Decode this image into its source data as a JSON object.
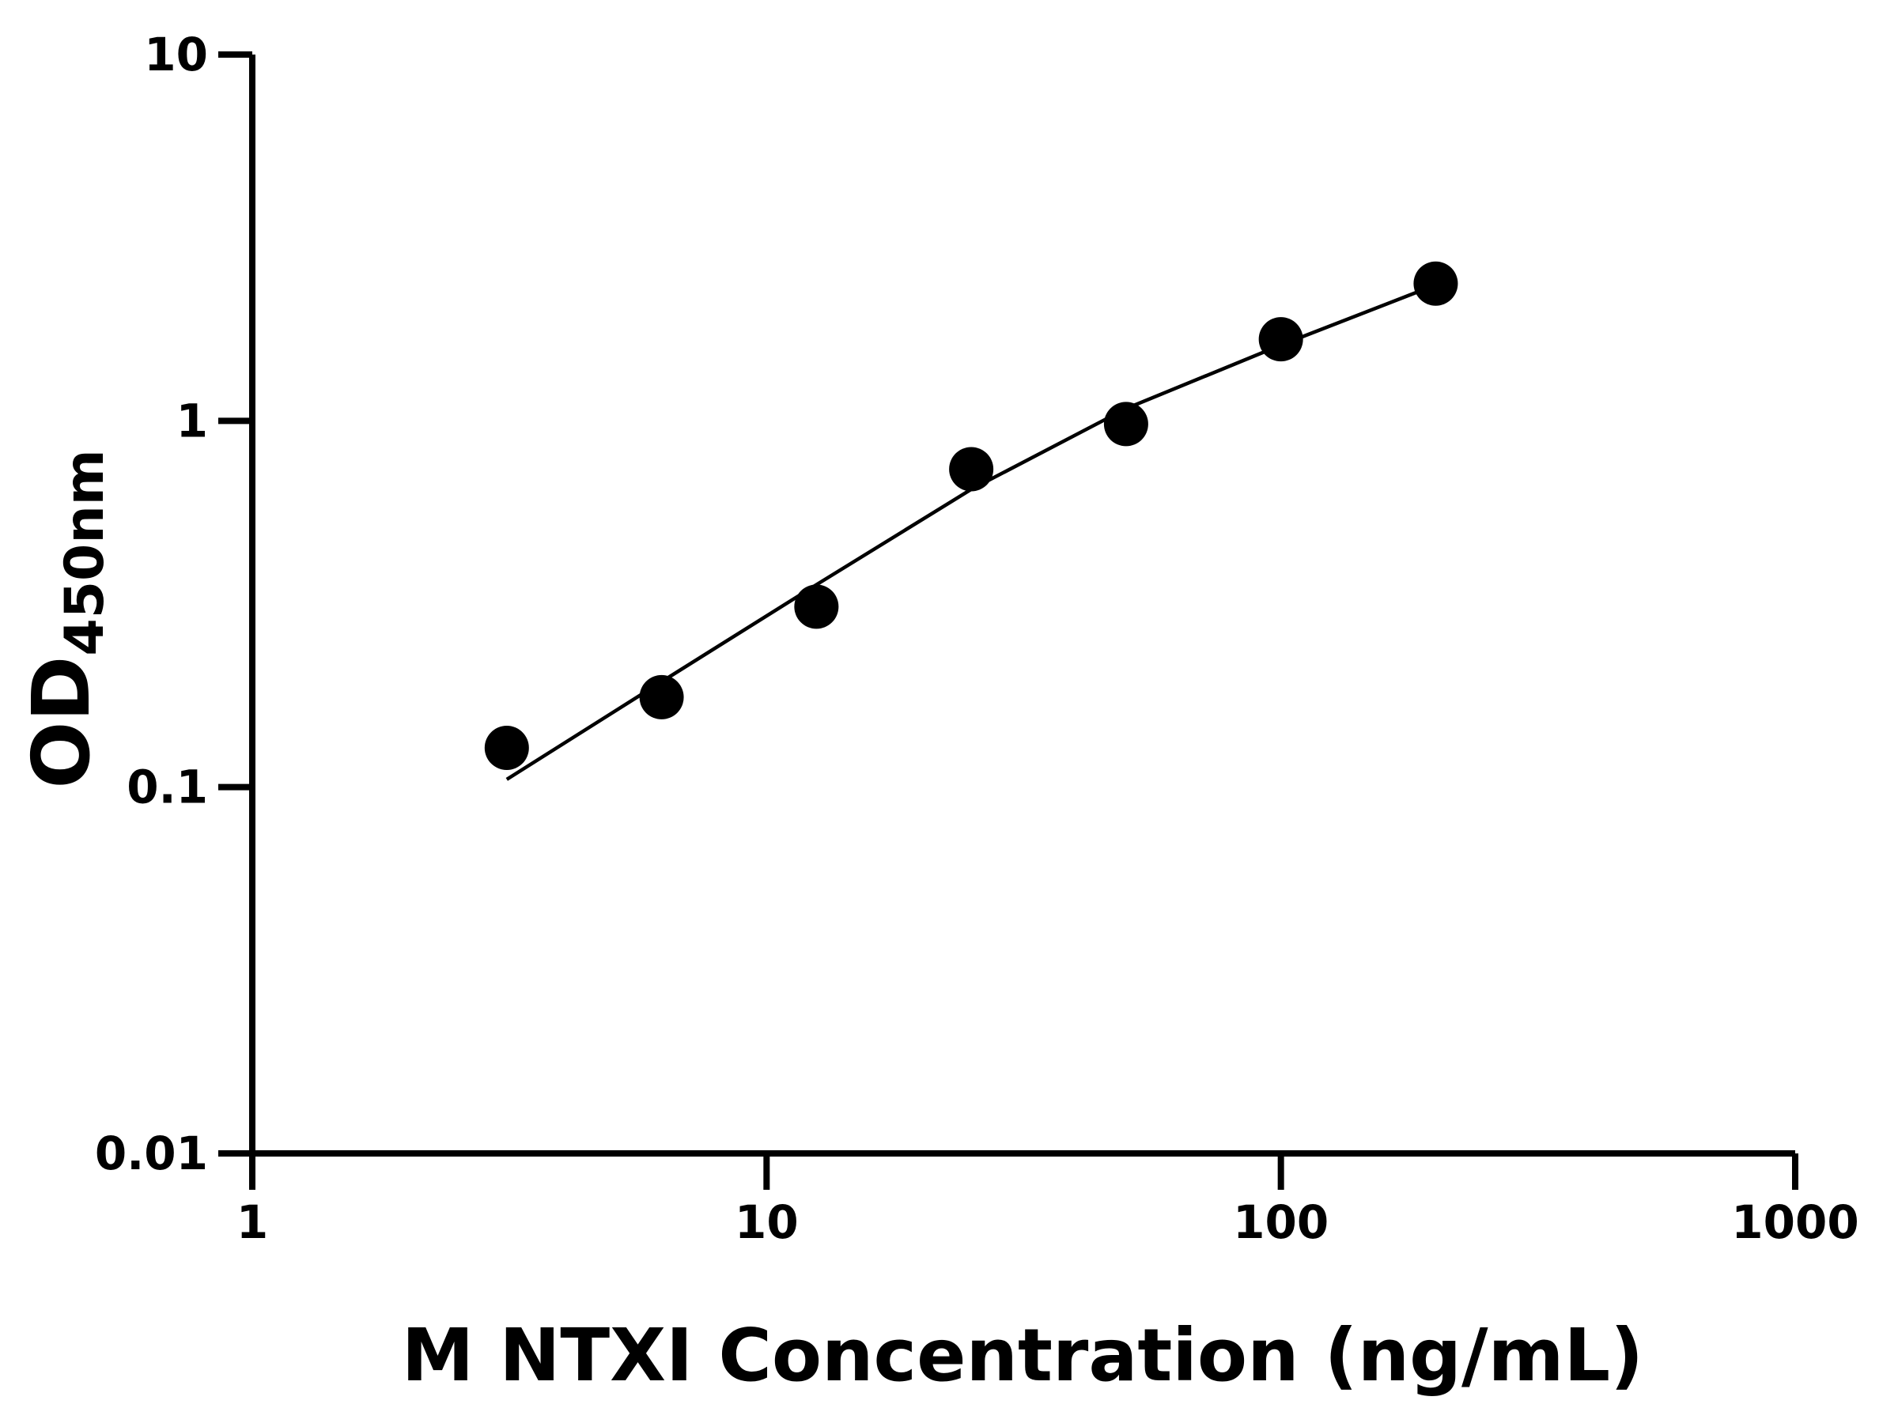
{
  "chart_data": {
    "type": "scatter",
    "xlabel": "M NTXI Concentration (ng/mL)",
    "ylabel": "OD",
    "ylabel_sub": "450nm",
    "x": [
      3.125,
      6.25,
      12.5,
      25,
      50,
      100,
      200
    ],
    "series": [
      {
        "color": "#000000",
        "values": [
          0.128,
          0.176,
          0.311,
          0.738,
          0.98,
          1.67,
          2.37
        ]
      },
      {
        "color": "#000000",
        "values": [
          0.105,
          0.194,
          0.357,
          0.65,
          1.08,
          1.61,
          2.35
        ],
        "line": true
      }
    ],
    "xlog": true,
    "ylog": true,
    "xlim": [
      1,
      1000
    ],
    "ylim": [
      0.01,
      10
    ],
    "xticks": [
      1,
      10,
      100,
      1000
    ],
    "yticks": [
      0.01,
      0.1,
      1,
      10
    ]
  }
}
